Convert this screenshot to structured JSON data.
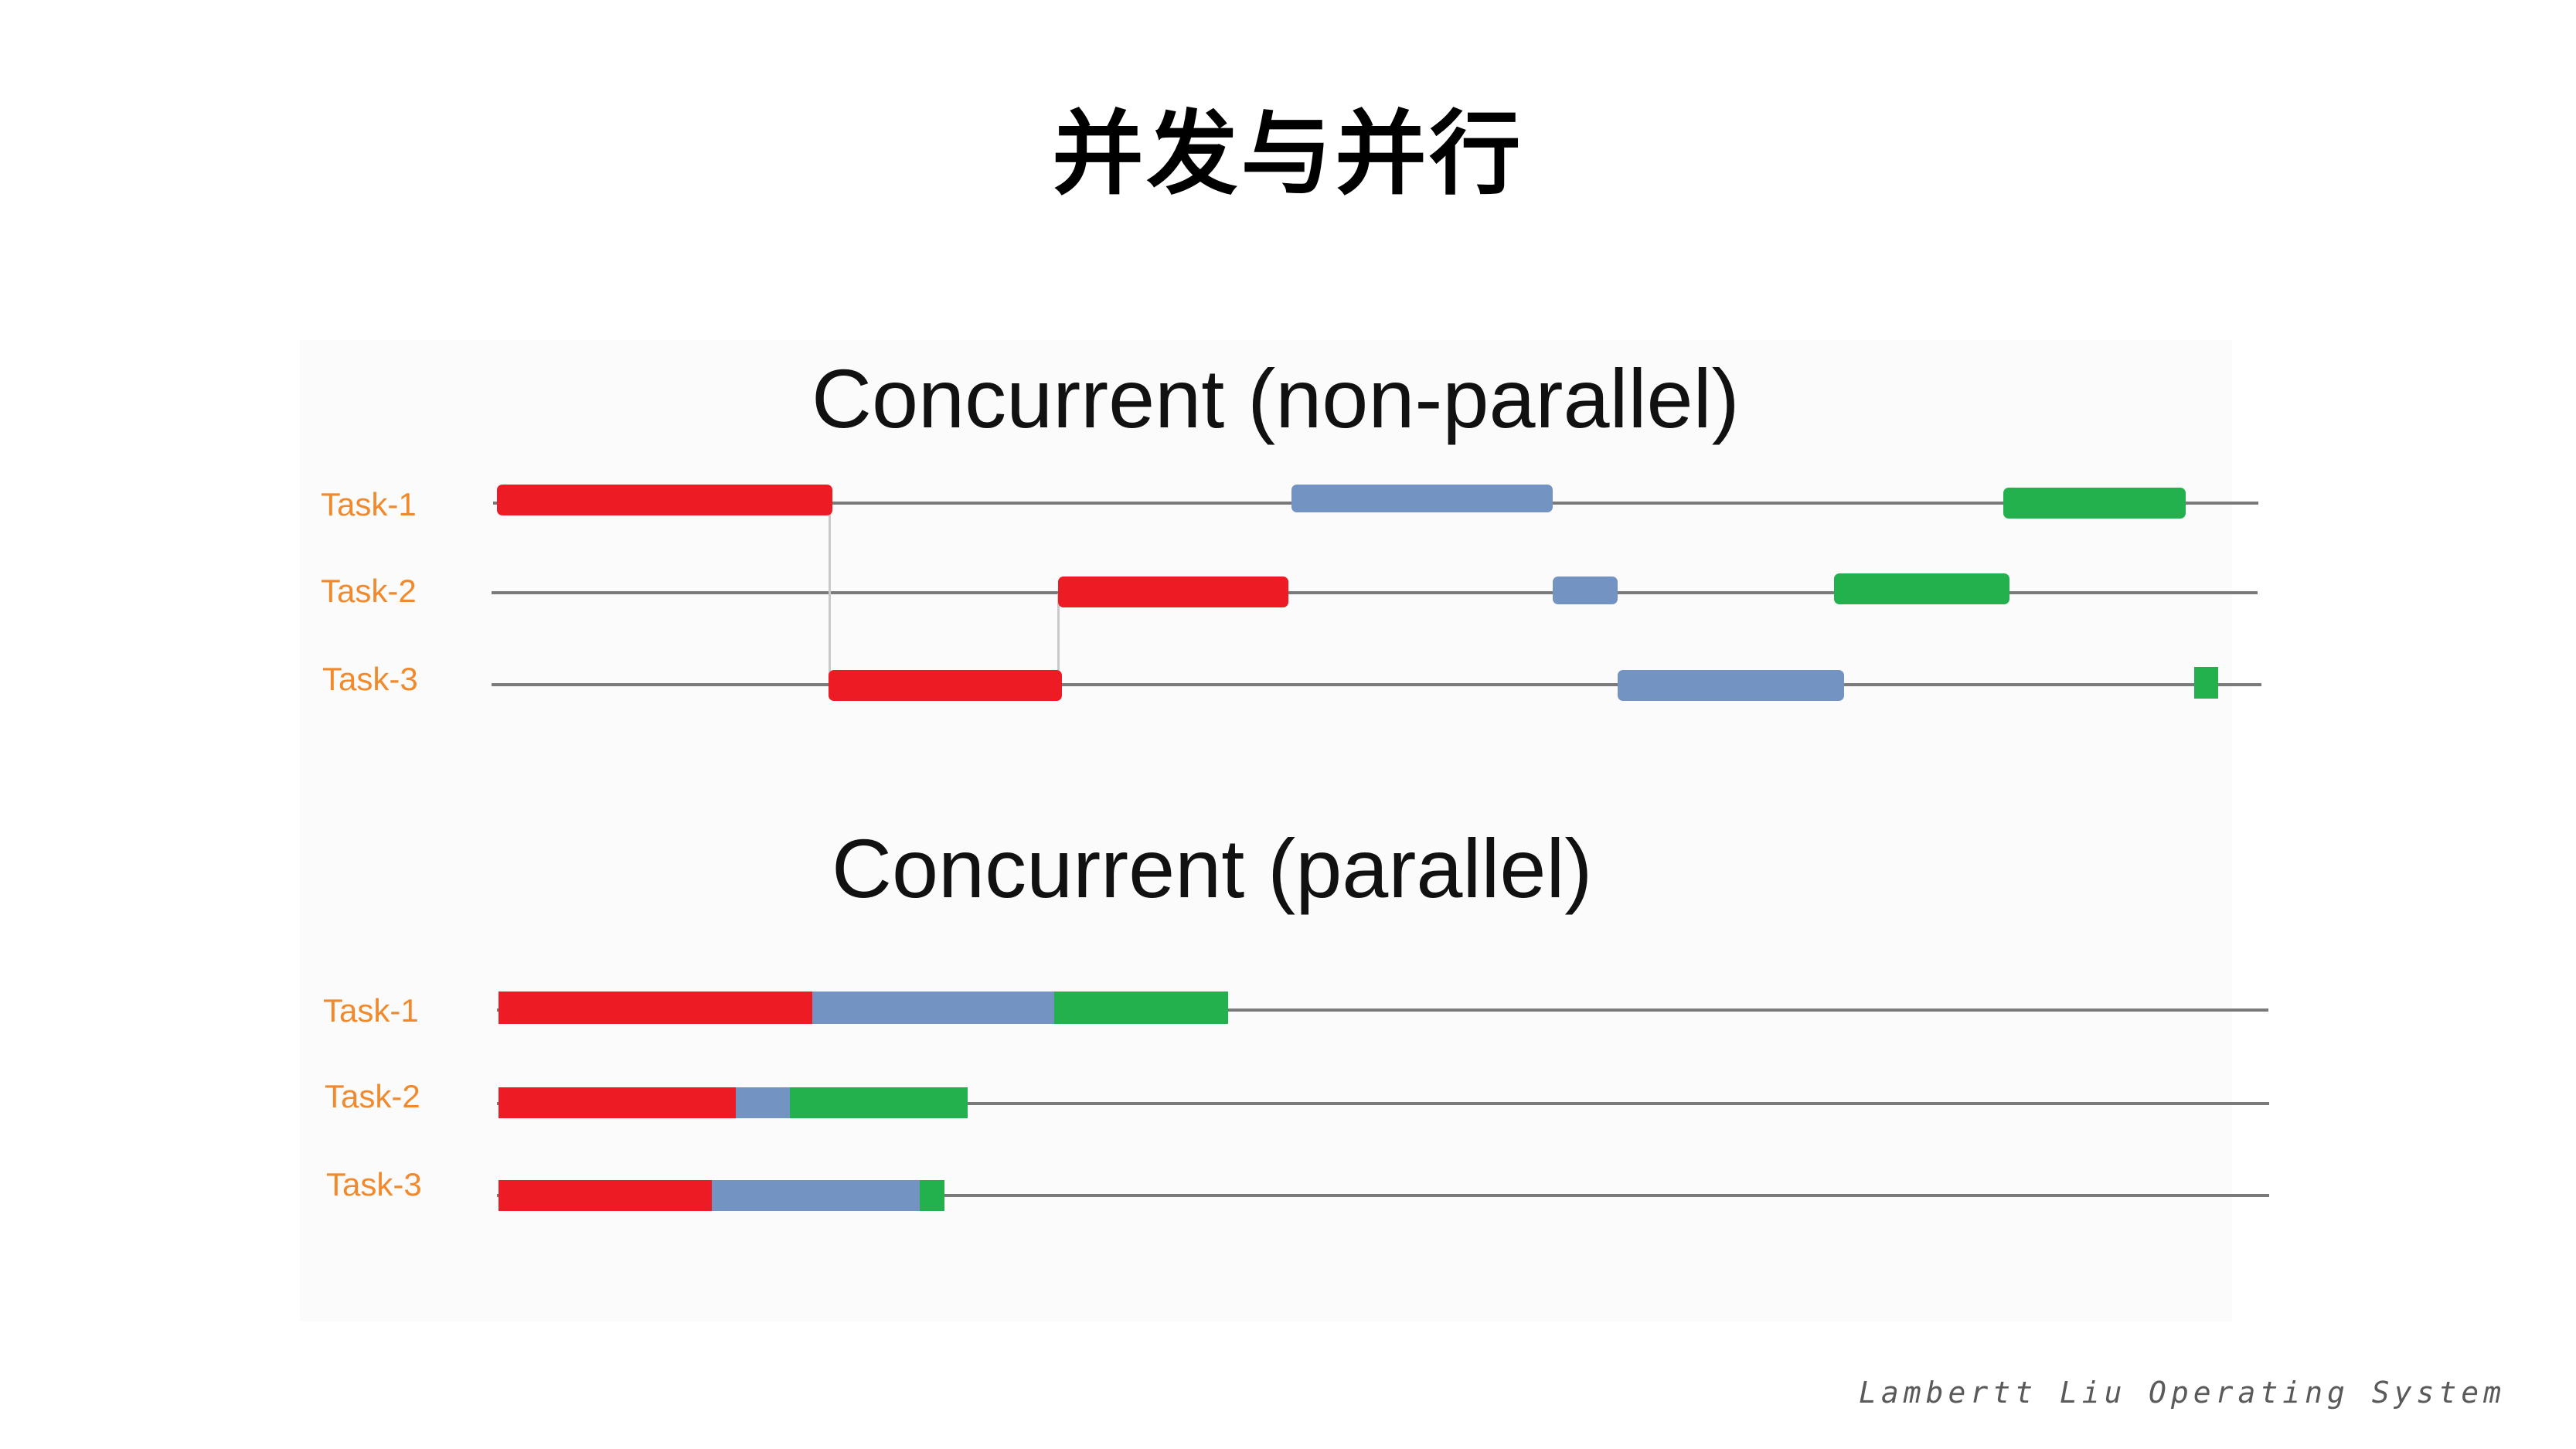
{
  "slide": {
    "title": "并发与并行"
  },
  "colors": {
    "red": "#ed1c24",
    "blue": "#7393c2",
    "green": "#22b14c",
    "task_label": "#f08a2c",
    "timeline": "#7a7a7a"
  },
  "sections": [
    {
      "title": "Concurrent (non-parallel)",
      "tasks": [
        {
          "label": "Task-1"
        },
        {
          "label": "Task-2"
        },
        {
          "label": "Task-3"
        }
      ]
    },
    {
      "title": "Concurrent (parallel)",
      "tasks": [
        {
          "label": "Task-1"
        },
        {
          "label": "Task-2"
        },
        {
          "label": "Task-3"
        }
      ]
    }
  ],
  "footer": {
    "author": "Lambertt Liu",
    "course": "Operating System"
  }
}
